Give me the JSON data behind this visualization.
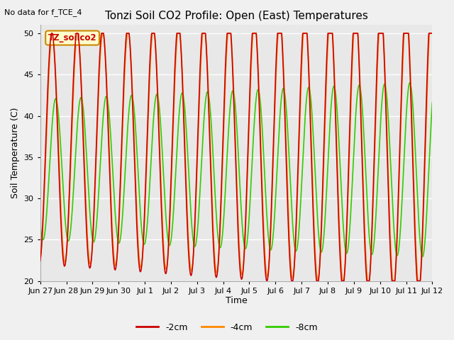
{
  "title": "Tonzi Soil CO2 Profile: Open (East) Temperatures",
  "subtitle": "No data for f_TCE_4",
  "ylabel": "Soil Temperature (C)",
  "xlabel": "Time",
  "ylim": [
    20,
    51
  ],
  "yticks": [
    20,
    25,
    30,
    35,
    40,
    45,
    50
  ],
  "legend_label": "TZ_soilco2",
  "legend_label_color": "#cc0000",
  "legend_box_facecolor": "#ffffcc",
  "legend_box_edgecolor": "#cc8800",
  "series_labels": [
    "-2cm",
    "-4cm",
    "-8cm"
  ],
  "series_colors": [
    "#cc0000",
    "#ff8800",
    "#33cc00"
  ],
  "xtick_labels": [
    "Jun 27",
    "Jun 28",
    "Jun 29",
    "Jun 30",
    "Jul 1",
    "Jul 2",
    "Jul 3",
    "Jul 4",
    "Jul 5",
    "Jul 6",
    "Jul 7",
    "Jul 8",
    "Jul 9",
    "Jul 10",
    "Jul 11",
    "Jul 12"
  ],
  "n_days": 15.5,
  "fig_facecolor": "#f0f0f0",
  "ax_facecolor": "#e8e8e8",
  "grid_color": "#ffffff",
  "figsize": [
    6.4,
    4.8
  ],
  "dpi": 100,
  "mean2": 36.0,
  "amp2": 14.0,
  "phase2": 0.25,
  "mean4": 36.0,
  "amp4": 13.5,
  "phase4": 0.15,
  "mean8": 33.5,
  "amp8": 8.5,
  "phase8": -0.7,
  "amp_growth_rate": 0.25
}
